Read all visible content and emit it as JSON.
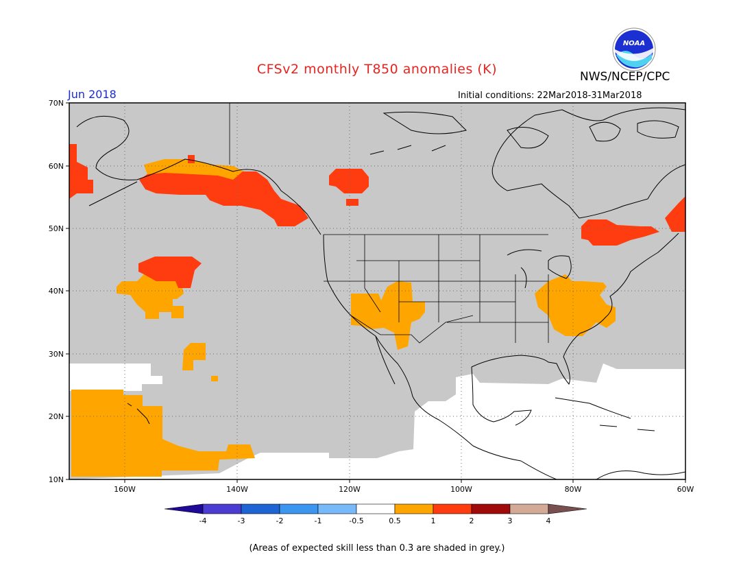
{
  "header": {
    "title": "CFSv2 monthly T850 anomalies (K)",
    "agency": "NWS/NCEP/CPC",
    "logo_text": "NOAA",
    "month": "Jun 2018",
    "initial_conditions": "Initial conditions: 22Mar2018-31Mar2018"
  },
  "map": {
    "lat_labels": [
      "70N",
      "60N",
      "50N",
      "40N",
      "30N",
      "20N",
      "10N"
    ],
    "lon_labels": [
      "160W",
      "140W",
      "120W",
      "100W",
      "80W",
      "60W"
    ],
    "colors": {
      "skill_grey": "#c8c8c8",
      "anom_0_5_to_1": "#ffa500",
      "anom_1_to_2": "#ff3c0f",
      "coastline": "#000000"
    }
  },
  "colorbar": {
    "tick_labels": [
      "-4",
      "-3",
      "-2",
      "-1",
      "-0.5",
      "0.5",
      "1",
      "2",
      "3",
      "4"
    ],
    "colors": [
      "#1e0a96",
      "#4b3cd2",
      "#1e64d2",
      "#3c96f0",
      "#78b9fa",
      "#ffffff",
      "#ffa500",
      "#ff3c0f",
      "#a00a0a",
      "#d2aa96",
      "#785050"
    ]
  },
  "footnote": "(Areas of expected skill less than 0.3 are shaded in grey.)"
}
